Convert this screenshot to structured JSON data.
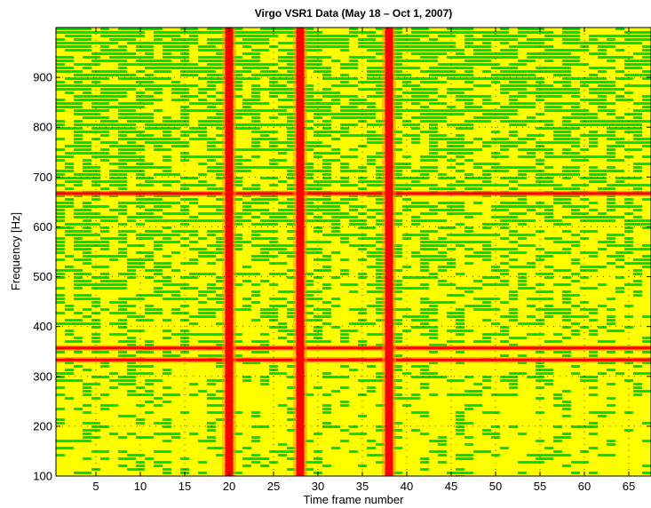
{
  "chart_data": {
    "type": "heatmap",
    "title": "Virgo VSR1 Data (May 18 – Oct 1, 2007)",
    "xlabel": "Time frame number",
    "ylabel": "Frequency [Hz]",
    "xlim": [
      0.5,
      67.5
    ],
    "ylim": [
      100,
      1000
    ],
    "xticks": [
      5,
      10,
      15,
      20,
      25,
      30,
      35,
      40,
      45,
      50,
      55,
      60,
      65
    ],
    "yticks": [
      100,
      200,
      300,
      400,
      500,
      600,
      700,
      800,
      900
    ],
    "colors": {
      "low": "#00e000",
      "mid": "#ffff00",
      "high": "#ff0000",
      "grid_dots": "#000000"
    },
    "red_time_frames": [
      20,
      28,
      38
    ],
    "red_frequency_lines": [
      333,
      357,
      667
    ],
    "grid": "dotted"
  }
}
